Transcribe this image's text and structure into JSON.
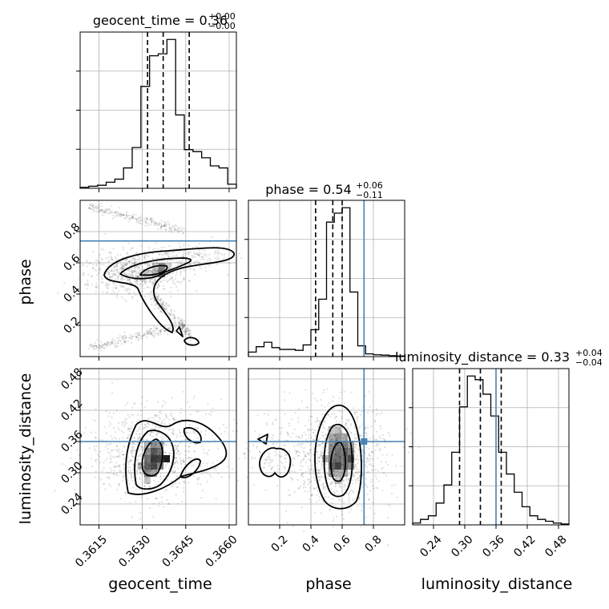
{
  "figure": {
    "params": [
      "geocent_time",
      "phase",
      "luminosity_distance"
    ],
    "titles": {
      "geocent_time": {
        "prefix": "geocent_time = 0.36",
        "plus": "+0.00",
        "minus": "−0.00"
      },
      "phase": {
        "prefix": "phase = 0.54",
        "plus": "+0.06",
        "minus": "−0.11"
      },
      "luminosity_distance": {
        "prefix": "luminosity_distance = 0.33",
        "plus": "+0.04",
        "minus": "−0.04"
      }
    },
    "axis_labels": {
      "geocent_time": "geocent_time",
      "phase": "phase",
      "luminosity_distance": "luminosity_distance"
    },
    "truth_color": "#4682b4"
  },
  "chart_data": {
    "type": "corner",
    "ranges": {
      "geocent_time": [
        0.36085,
        0.36625
      ],
      "phase": [
        0.0,
        1.0
      ],
      "luminosity_distance": [
        0.2,
        0.5
      ]
    },
    "ticks": {
      "geocent_time": {
        "values": [
          0.3615,
          0.363,
          0.3645,
          0.366
        ],
        "labels": [
          "0.3615",
          "0.3630",
          "0.3645",
          "0.3660"
        ]
      },
      "phase": {
        "values": [
          0.2,
          0.4,
          0.6,
          0.8
        ],
        "labels": [
          "0.2",
          "0.4",
          "0.6",
          "0.8"
        ]
      },
      "luminosity_distance": {
        "values": [
          0.24,
          0.3,
          0.36,
          0.42,
          0.48
        ],
        "labels": [
          "0.24",
          "0.30",
          "0.36",
          "0.42",
          "0.48"
        ]
      }
    },
    "truths": {
      "phase": 0.74,
      "luminosity_distance": 0.36
    },
    "quantiles": {
      "geocent_time": [
        0.36318,
        0.36372,
        0.36462
      ],
      "phase": [
        0.43,
        0.54,
        0.6
      ],
      "luminosity_distance": [
        0.29,
        0.33,
        0.37
      ]
    },
    "histograms": {
      "geocent_time": {
        "edges": [
          0.36085,
          0.36115,
          0.36145,
          0.36175,
          0.36205,
          0.36235,
          0.36265,
          0.36295,
          0.36325,
          0.36355,
          0.36385,
          0.36415,
          0.36445,
          0.36475,
          0.36505,
          0.36535,
          0.36565,
          0.36595,
          0.36625
        ],
        "counts": [
          0.5,
          1,
          1.5,
          3,
          4.5,
          10,
          20,
          50,
          65,
          66,
          73,
          36,
          19,
          18,
          15,
          11,
          10,
          2
        ]
      },
      "phase": {
        "edges": [
          0.0,
          0.05,
          0.1,
          0.15,
          0.2,
          0.25,
          0.3,
          0.35,
          0.4,
          0.45,
          0.5,
          0.55,
          0.6,
          0.65,
          0.7,
          0.75,
          0.8,
          0.85,
          0.9,
          0.95,
          1.0
        ],
        "counts": [
          2.5,
          5.5,
          8,
          5,
          4,
          4,
          3.5,
          6.5,
          15,
          32,
          75,
          80,
          83,
          36,
          6,
          1.5,
          1,
          0.8,
          0.5,
          0.3
        ]
      },
      "luminosity_distance": {
        "edges": [
          0.2,
          0.215,
          0.23,
          0.245,
          0.26,
          0.275,
          0.29,
          0.305,
          0.32,
          0.335,
          0.35,
          0.365,
          0.38,
          0.395,
          0.41,
          0.425,
          0.44,
          0.455,
          0.47,
          0.485,
          0.5
        ],
        "counts": [
          1,
          3,
          5,
          12,
          22,
          40,
          65,
          82,
          80,
          72,
          60,
          40,
          28,
          18,
          10,
          5,
          3,
          2,
          1,
          0.5
        ]
      }
    }
  }
}
